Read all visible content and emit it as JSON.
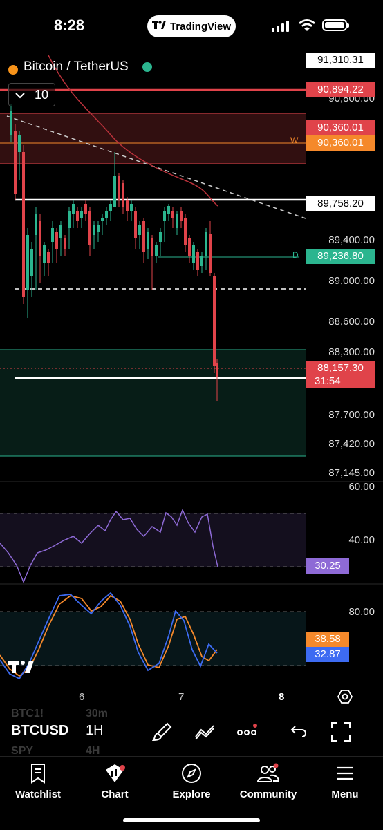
{
  "status_bar": {
    "time": "8:28",
    "app_pill": "TradingView",
    "app_pill_logo": "tradingview-logo"
  },
  "chart_header": {
    "symbol_title": "Bitcoin / TetherUS",
    "collapse_count": "10"
  },
  "price_tags": {
    "top": "91,310.31",
    "red_line": "90,894.22",
    "zone_top": "90,360.01",
    "zone_top_orange": "90,360.01",
    "white_line": "89,758.20",
    "green_line": "89,236.80",
    "current_price": "88,157.30",
    "countdown": "31:54"
  },
  "price_axis": [
    "90,800.00",
    "89,400.00",
    "89,000.00",
    "88,600.00",
    "88,300.00",
    "87,700.00",
    "87,420.00",
    "87,145.00"
  ],
  "drawing_labels": {
    "w_label": "W",
    "d_label": "D"
  },
  "rsi": {
    "axis": [
      "60.00",
      "40.00"
    ],
    "value": "30.25",
    "color": "#8e6ad6"
  },
  "stoch": {
    "axis": [
      "80.00"
    ],
    "k_value": "38.58",
    "d_value": "32.87",
    "k_color": "#f5892b",
    "d_color": "#3d6bf2"
  },
  "time_axis": [
    "6",
    "7",
    "8"
  ],
  "bottom_bar": {
    "ticker": "BTCUSD",
    "timeframe": "1H",
    "ghost_ticker_1": "BTC1!",
    "ghost_tf_1": "30m",
    "ghost_ticker_2": "SPY",
    "ghost_tf_2": "4H",
    "tools": [
      "brush-icon",
      "trend-line-icon",
      "more-icon",
      "undo-icon",
      "fullscreen-icon"
    ]
  },
  "tabs": [
    {
      "label": "Watchlist",
      "icon": "bookmark-icon"
    },
    {
      "label": "Chart",
      "icon": "chart-icon"
    },
    {
      "label": "Explore",
      "icon": "compass-icon"
    },
    {
      "label": "Community",
      "icon": "community-icon"
    },
    {
      "label": "Menu",
      "icon": "menu-icon"
    }
  ],
  "colors": {
    "red": "#e0434a",
    "green": "#2bb58f",
    "orange": "#f5892b",
    "accent_purple": "#8e6ad6"
  }
}
